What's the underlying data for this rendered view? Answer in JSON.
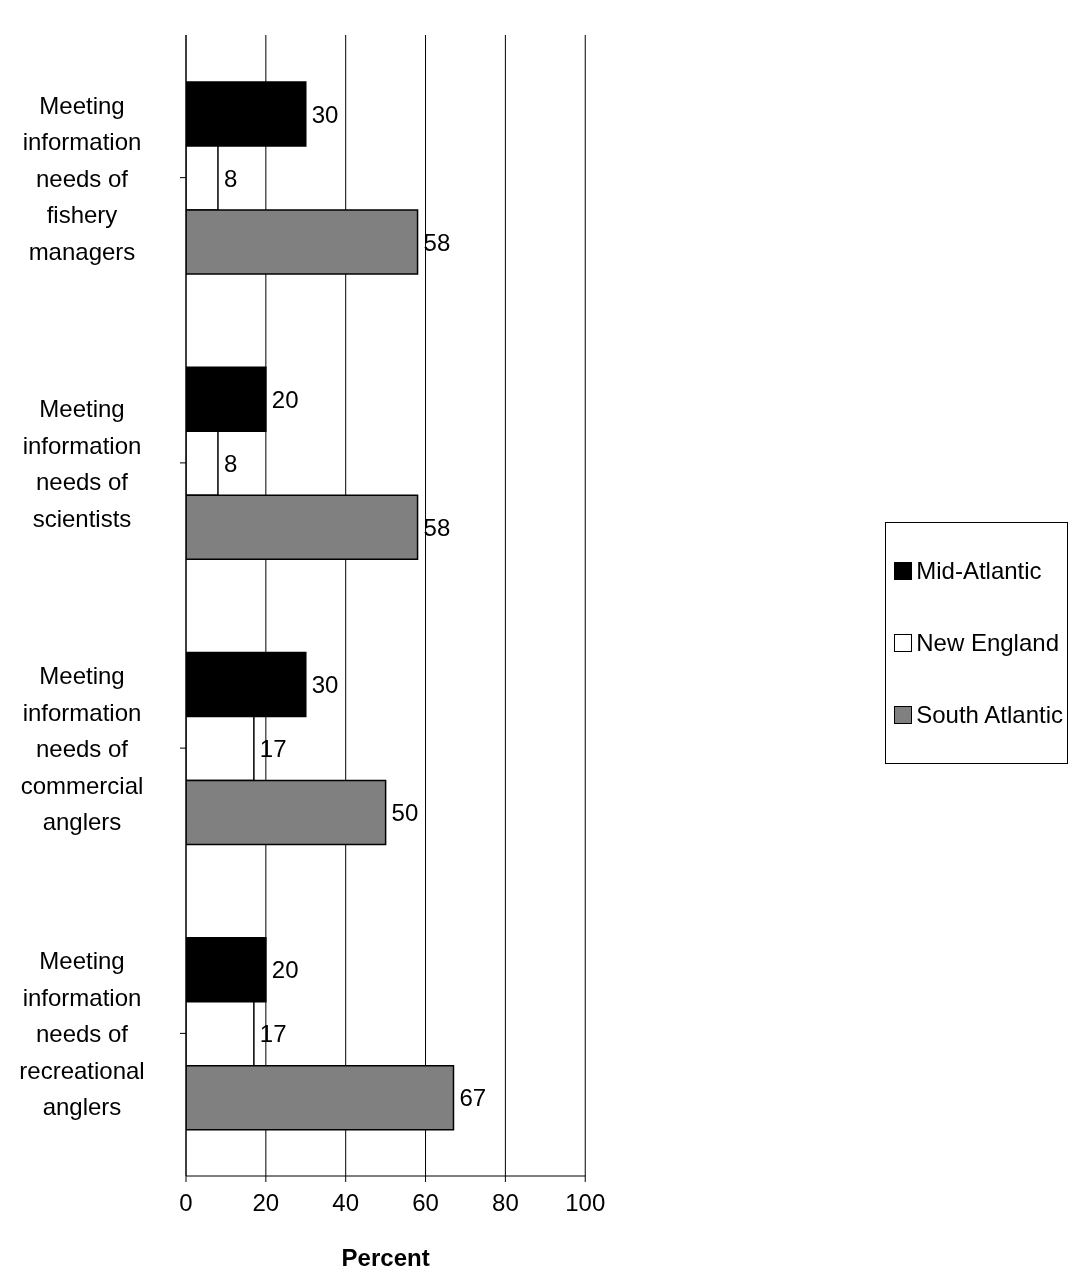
{
  "chart_data": {
    "type": "bar",
    "orientation": "horizontal",
    "categories": [
      "Meeting information needs of fishery managers",
      "Meeting information needs of scientists",
      "Meeting information needs of commercial anglers",
      "Meeting information needs of recreational anglers"
    ],
    "series": [
      {
        "name": "Mid-Atlantic",
        "color": "#000000",
        "values": [
          30,
          20,
          30,
          20
        ]
      },
      {
        "name": "New England",
        "color": "#ffffff",
        "values": [
          8,
          8,
          17,
          17
        ]
      },
      {
        "name": "South Atlantic",
        "color": "#808080",
        "values": [
          58,
          58,
          50,
          67
        ]
      }
    ],
    "xlim": [
      0,
      100
    ],
    "xticks": [
      0,
      20,
      40,
      60,
      80,
      100
    ],
    "xlabel": "Percent",
    "grid": "x",
    "legend": "right",
    "data_labels": true
  }
}
